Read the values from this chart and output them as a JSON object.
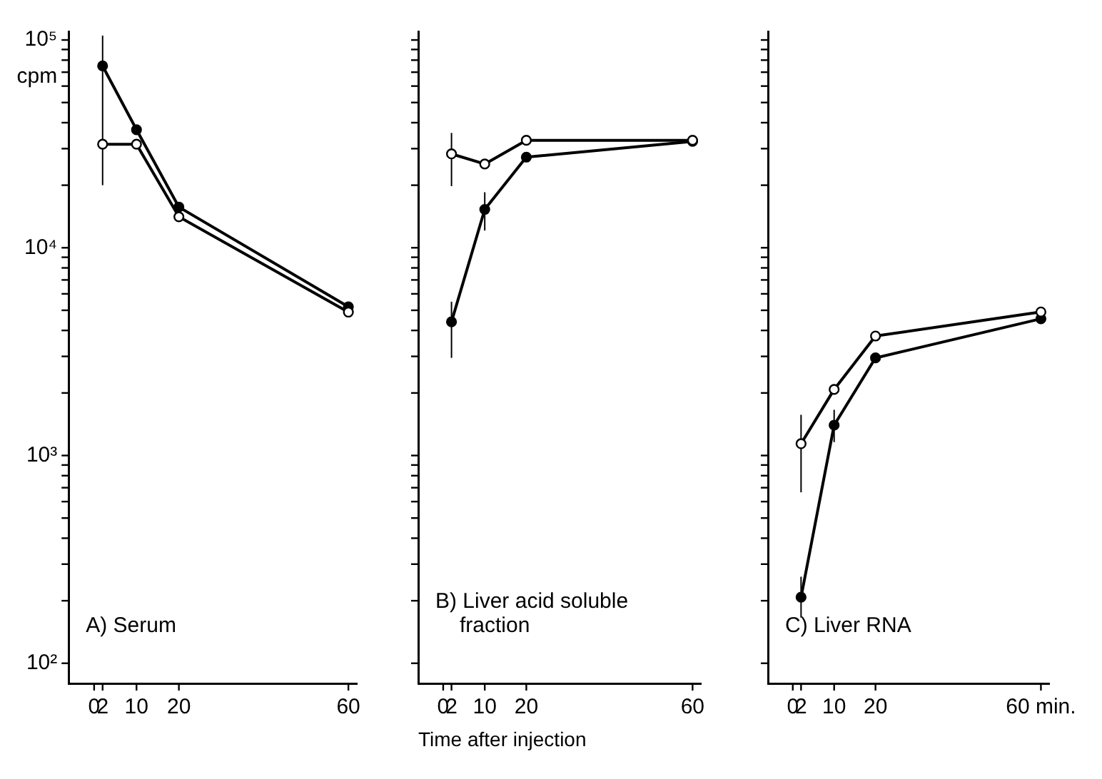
{
  "chart_data": [
    {
      "type": "line",
      "ylabel": "cpm",
      "annotations": [
        "A) Serum"
      ],
      "x": [
        2,
        10,
        20,
        60
      ],
      "xlim": [
        -6,
        62
      ],
      "xticks": [
        0,
        2,
        10,
        20,
        60
      ],
      "log": "y",
      "ylim": [
        80,
        110000
      ],
      "yticks": [
        {
          "value": 100,
          "label": "10²"
        },
        {
          "value": 200,
          "label": null
        },
        {
          "value": 300,
          "label": null
        },
        {
          "value": 400,
          "label": null
        },
        {
          "value": 500,
          "label": null
        },
        {
          "value": 600,
          "label": null
        },
        {
          "value": 700,
          "label": null
        },
        {
          "value": 800,
          "label": null
        },
        {
          "value": 900,
          "label": null
        },
        {
          "value": 1000,
          "label": "10³"
        },
        {
          "value": 2000,
          "label": null
        },
        {
          "value": 3000,
          "label": null
        },
        {
          "value": 4000,
          "label": null
        },
        {
          "value": 5000,
          "label": null
        },
        {
          "value": 6000,
          "label": null
        },
        {
          "value": 7000,
          "label": null
        },
        {
          "value": 8000,
          "label": null
        },
        {
          "value": 9000,
          "label": null
        },
        {
          "value": 10000,
          "label": "10⁴"
        },
        {
          "value": 20000,
          "label": null
        },
        {
          "value": 30000,
          "label": null
        },
        {
          "value": 40000,
          "label": null
        },
        {
          "value": 50000,
          "label": null
        },
        {
          "value": 60000,
          "label": null
        },
        {
          "value": 70000,
          "label": null
        },
        {
          "value": 80000,
          "label": null
        },
        {
          "value": 90000,
          "label": null
        },
        {
          "value": 100000,
          "label": "10⁵"
        }
      ],
      "grid": false,
      "legend": false,
      "marker": "circle",
      "line_style": "solid",
      "series": [
        {
          "color": "#000000",
          "values": [
            75000,
            37000,
            15700,
            5200
          ],
          "errors": [
            [
              20000,
              105000
            ],
            null,
            null,
            null
          ]
        },
        {
          "color": "#000000",
          "values": [
            31500,
            31500,
            14100,
            4900
          ],
          "errors": [
            null,
            null,
            null,
            null
          ]
        }
      ]
    },
    {
      "type": "line",
      "xlabel": "Time after injection",
      "annotations": [
        "B) Liver acid soluble fraction"
      ],
      "x": [
        2,
        10,
        20,
        60
      ],
      "xlim": [
        -6,
        62
      ],
      "xticks": [
        0,
        2,
        10,
        20,
        60
      ],
      "log": "y",
      "ylim": [
        80,
        110000
      ],
      "yticks": [
        {
          "value": 100,
          "label": null
        },
        {
          "value": 200,
          "label": null
        },
        {
          "value": 300,
          "label": null
        },
        {
          "value": 400,
          "label": null
        },
        {
          "value": 500,
          "label": null
        },
        {
          "value": 600,
          "label": null
        },
        {
          "value": 700,
          "label": null
        },
        {
          "value": 800,
          "label": null
        },
        {
          "value": 900,
          "label": null
        },
        {
          "value": 1000,
          "label": null
        },
        {
          "value": 2000,
          "label": null
        },
        {
          "value": 3000,
          "label": null
        },
        {
          "value": 4000,
          "label": null
        },
        {
          "value": 5000,
          "label": null
        },
        {
          "value": 6000,
          "label": null
        },
        {
          "value": 7000,
          "label": null
        },
        {
          "value": 8000,
          "label": null
        },
        {
          "value": 9000,
          "label": null
        },
        {
          "value": 10000,
          "label": null
        },
        {
          "value": 20000,
          "label": null
        },
        {
          "value": 30000,
          "label": null
        },
        {
          "value": 40000,
          "label": null
        },
        {
          "value": 50000,
          "label": null
        },
        {
          "value": 60000,
          "label": null
        },
        {
          "value": 70000,
          "label": null
        },
        {
          "value": 80000,
          "label": null
        },
        {
          "value": 90000,
          "label": null
        },
        {
          "value": 100000,
          "label": null
        }
      ],
      "tick_labels": "x",
      "grid": false,
      "legend": false,
      "marker": "circle",
      "line_style": "solid",
      "series": [
        {
          "color": "#000000",
          "values": [
            4400,
            15300,
            27300,
            32500
          ],
          "errors": [
            [
              2950,
              5500
            ],
            [
              12100,
              18500
            ],
            null,
            null
          ]
        },
        {
          "color": "#000000",
          "values": [
            28300,
            25300,
            32900,
            32900
          ],
          "errors": [
            [
              19800,
              35700
            ],
            null,
            null,
            null
          ]
        }
      ]
    },
    {
      "type": "line",
      "annotations": [
        "C) Liver RNA"
      ],
      "x": [
        2,
        10,
        20,
        60
      ],
      "xlim": [
        -6,
        62
      ],
      "xticks": [
        0,
        2,
        10,
        20,
        {
          "value": 60,
          "label": "60 min."
        }
      ],
      "log": "y",
      "ylim": [
        80,
        110000
      ],
      "yticks": [
        {
          "value": 100,
          "label": null
        },
        {
          "value": 200,
          "label": null
        },
        {
          "value": 300,
          "label": null
        },
        {
          "value": 400,
          "label": null
        },
        {
          "value": 500,
          "label": null
        },
        {
          "value": 600,
          "label": null
        },
        {
          "value": 700,
          "label": null
        },
        {
          "value": 800,
          "label": null
        },
        {
          "value": 900,
          "label": null
        },
        {
          "value": 1000,
          "label": null
        },
        {
          "value": 2000,
          "label": null
        },
        {
          "value": 3000,
          "label": null
        },
        {
          "value": 4000,
          "label": null
        },
        {
          "value": 5000,
          "label": null
        },
        {
          "value": 6000,
          "label": null
        },
        {
          "value": 7000,
          "label": null
        },
        {
          "value": 8000,
          "label": null
        },
        {
          "value": 9000,
          "label": null
        },
        {
          "value": 10000,
          "label": null
        },
        {
          "value": 20000,
          "label": null
        },
        {
          "value": 30000,
          "label": null
        },
        {
          "value": 40000,
          "label": null
        },
        {
          "value": 50000,
          "label": null
        },
        {
          "value": 60000,
          "label": null
        },
        {
          "value": 70000,
          "label": null
        },
        {
          "value": 80000,
          "label": null
        },
        {
          "value": 90000,
          "label": null
        },
        {
          "value": 100000,
          "label": null
        }
      ],
      "tick_labels": "x",
      "grid": false,
      "legend": false,
      "marker": "circle",
      "line_style": "solid",
      "series": [
        {
          "color": "#000000",
          "values": [
            208,
            1400,
            2950,
            4550
          ],
          "errors": [
            [
              166,
              261
            ],
            [
              1160,
              1660
            ],
            null,
            null
          ]
        },
        {
          "color": "#000000",
          "values": [
            1140,
            2080,
            3760,
            4910
          ],
          "errors": [
            [
              665,
              1570
            ],
            null,
            null,
            null
          ]
        }
      ]
    }
  ]
}
